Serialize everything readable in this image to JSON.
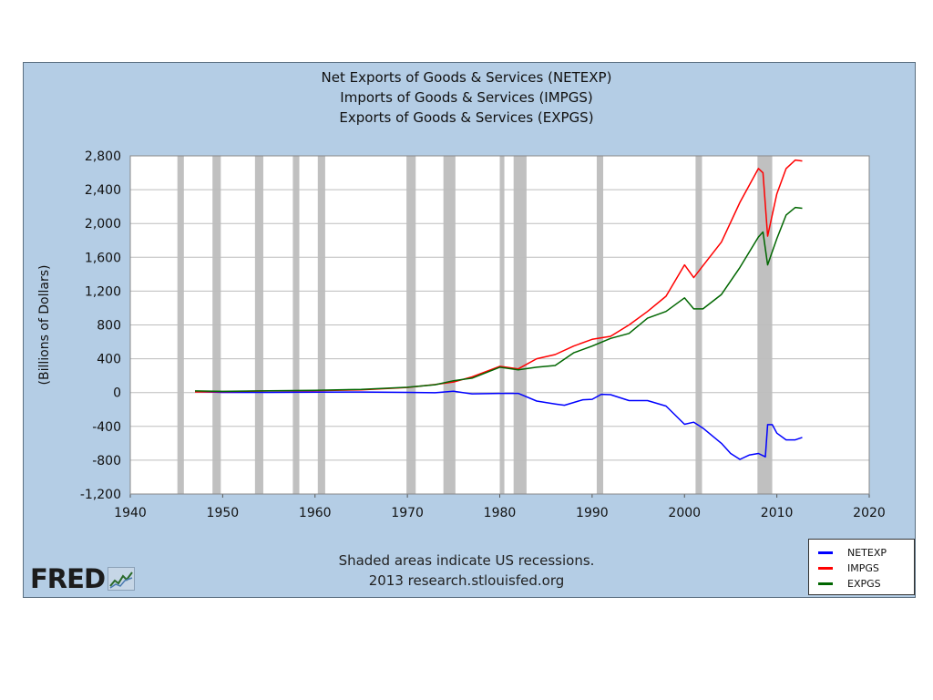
{
  "chart_data": {
    "type": "line",
    "title_lines": [
      "Net Exports of Goods & Services (NETEXP)",
      "Imports of Goods & Services (IMPGS)",
      "Exports of Goods & Services (EXPGS)"
    ],
    "ylabel": "(Billions of Dollars)",
    "xlim": [
      1940,
      2020
    ],
    "ylim": [
      -1200,
      2800
    ],
    "x_ticks": [
      "1940",
      "1950",
      "1960",
      "1970",
      "1980",
      "1990",
      "2000",
      "2010",
      "2020"
    ],
    "y_ticks": [
      "2,800",
      "2,400",
      "2,000",
      "1,600",
      "1,200",
      "800",
      "400",
      "0",
      "-400",
      "-800",
      "-1,200"
    ],
    "grid": "horizontal",
    "legend_position": "bottom-right",
    "recessions": [
      [
        1945.1,
        1945.8
      ],
      [
        1948.9,
        1949.8
      ],
      [
        1953.5,
        1954.4
      ],
      [
        1957.6,
        1958.3
      ],
      [
        1960.3,
        1961.1
      ],
      [
        1969.9,
        1970.9
      ],
      [
        1973.9,
        1975.2
      ],
      [
        1980.0,
        1980.5
      ],
      [
        1981.5,
        1982.9
      ],
      [
        1990.5,
        1991.2
      ],
      [
        2001.2,
        2001.9
      ],
      [
        2007.9,
        2009.5
      ]
    ],
    "series": [
      {
        "name": "NETEXP",
        "color": "#0000ff",
        "x": [
          1947,
          1950,
          1955,
          1960,
          1965,
          1970,
          1973,
          1975,
          1977,
          1980,
          1982,
          1984,
          1986,
          1987,
          1989,
          1990,
          1991,
          1992,
          1994,
          1996,
          1998,
          2000,
          2001,
          2002,
          2004,
          2005,
          2006,
          2007,
          2008,
          2008.75,
          2009,
          2009.5,
          2010,
          2011,
          2012,
          2012.75
        ],
        "y": [
          11,
          2,
          2,
          4,
          7,
          2,
          -2,
          15,
          -15,
          -10,
          -10,
          -100,
          -135,
          -150,
          -85,
          -80,
          -20,
          -25,
          -95,
          -95,
          -160,
          -375,
          -350,
          -420,
          -600,
          -720,
          -790,
          -740,
          -720,
          -760,
          -380,
          -380,
          -480,
          -560,
          -560,
          -530
        ]
      },
      {
        "name": "IMPGS",
        "color": "#ff0000",
        "x": [
          1947,
          1950,
          1955,
          1960,
          1965,
          1970,
          1973,
          1975,
          1977,
          1980,
          1982,
          1984,
          1986,
          1988,
          1990,
          1992,
          1994,
          1996,
          1998,
          2000,
          2001,
          2002,
          2004,
          2006,
          2008,
          2008.5,
          2009,
          2010,
          2011,
          2012,
          2012.75
        ],
        "y": [
          8,
          12,
          19,
          23,
          31,
          60,
          95,
          125,
          185,
          310,
          280,
          400,
          450,
          550,
          630,
          665,
          800,
          960,
          1140,
          1510,
          1360,
          1500,
          1780,
          2250,
          2650,
          2600,
          1850,
          2350,
          2650,
          2750,
          2740
        ]
      },
      {
        "name": "EXPGS",
        "color": "#006600",
        "x": [
          1947,
          1950,
          1955,
          1960,
          1965,
          1970,
          1973,
          1975,
          1977,
          1980,
          1982,
          1984,
          1986,
          1988,
          1990,
          1992,
          1994,
          1996,
          1998,
          2000,
          2001,
          2002,
          2004,
          2006,
          2008,
          2008.5,
          2009,
          2010,
          2011,
          2012,
          2012.75
        ],
        "y": [
          19,
          14,
          21,
          27,
          38,
          62,
          93,
          140,
          170,
          300,
          270,
          300,
          320,
          470,
          550,
          640,
          700,
          880,
          960,
          1120,
          990,
          990,
          1160,
          1480,
          1840,
          1900,
          1510,
          1820,
          2100,
          2190,
          2180
        ]
      }
    ]
  },
  "footer": {
    "note": "Shaded areas indicate US recessions.",
    "source": "2013 research.stlouisfed.org"
  },
  "logo": {
    "text": "FRED"
  }
}
